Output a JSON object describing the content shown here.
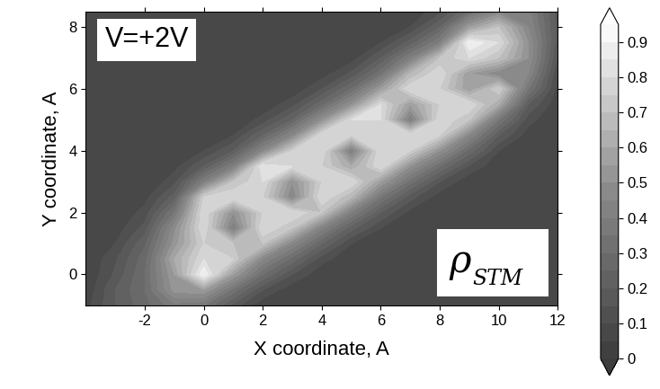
{
  "chart_data": {
    "type": "contour",
    "xlabel": "X coordinate, A",
    "ylabel": "Y coordinate, A",
    "annotation": "V=+2V",
    "label_symbol": "ρ",
    "label_subscript": "STM",
    "xlim": [
      -4,
      12
    ],
    "xticks": [
      -2,
      0,
      2,
      4,
      6,
      8,
      10,
      12
    ],
    "ylim": [
      -1,
      8.5
    ],
    "yticks": [
      0,
      2,
      4,
      6,
      8
    ],
    "colorbar_lim": [
      0,
      0.95
    ],
    "colorbar_ticks": [
      0,
      0.1,
      0.2,
      0.3,
      0.4,
      0.5,
      0.6,
      0.7,
      0.8,
      0.9
    ],
    "x": [
      -4,
      -3,
      -2,
      -1,
      0,
      1,
      2,
      3,
      4,
      5,
      6,
      7,
      8,
      9,
      10,
      11,
      12
    ],
    "y": [
      -1.0,
      -0.5,
      0.0,
      0.5,
      1.0,
      1.5,
      2.0,
      2.5,
      3.0,
      3.5,
      4.0,
      4.5,
      5.0,
      5.5,
      6.0,
      6.5,
      7.0,
      7.5,
      8.0,
      8.5
    ],
    "cells": [
      [
        0.08,
        0.2,
        0.28,
        0.38,
        0.35,
        0.18,
        0.06,
        0.05,
        0.05,
        0.05,
        0.05,
        0.05,
        0.05,
        0.05,
        0.05,
        0.05,
        0.05
      ],
      [
        0.06,
        0.2,
        0.3,
        0.52,
        0.55,
        0.33,
        0.15,
        0.06,
        0.05,
        0.05,
        0.05,
        0.05,
        0.05,
        0.05,
        0.05,
        0.05,
        0.05
      ],
      [
        0.05,
        0.16,
        0.3,
        0.55,
        0.9,
        0.55,
        0.3,
        0.15,
        0.06,
        0.05,
        0.05,
        0.05,
        0.05,
        0.05,
        0.05,
        0.05,
        0.05
      ],
      [
        0.05,
        0.14,
        0.28,
        0.6,
        0.8,
        0.75,
        0.45,
        0.28,
        0.12,
        0.06,
        0.05,
        0.05,
        0.05,
        0.05,
        0.05,
        0.05,
        0.05
      ],
      [
        0.05,
        0.1,
        0.24,
        0.52,
        0.75,
        0.7,
        0.7,
        0.45,
        0.25,
        0.1,
        0.06,
        0.05,
        0.05,
        0.05,
        0.05,
        0.05,
        0.05
      ],
      [
        0.05,
        0.07,
        0.17,
        0.48,
        0.8,
        0.4,
        0.8,
        0.7,
        0.42,
        0.22,
        0.1,
        0.05,
        0.05,
        0.05,
        0.05,
        0.05,
        0.05
      ],
      [
        0.05,
        0.05,
        0.12,
        0.35,
        0.8,
        0.5,
        0.75,
        0.8,
        0.7,
        0.4,
        0.2,
        0.08,
        0.05,
        0.05,
        0.05,
        0.05,
        0.05
      ],
      [
        0.05,
        0.05,
        0.08,
        0.22,
        0.75,
        0.8,
        0.75,
        0.45,
        0.8,
        0.65,
        0.35,
        0.17,
        0.07,
        0.05,
        0.05,
        0.05,
        0.05
      ],
      [
        0.05,
        0.05,
        0.05,
        0.13,
        0.4,
        0.7,
        0.8,
        0.5,
        0.75,
        0.8,
        0.55,
        0.32,
        0.15,
        0.06,
        0.05,
        0.05,
        0.05
      ],
      [
        0.05,
        0.05,
        0.05,
        0.08,
        0.2,
        0.4,
        0.85,
        0.8,
        0.75,
        0.6,
        0.8,
        0.5,
        0.3,
        0.14,
        0.06,
        0.05,
        0.05
      ],
      [
        0.05,
        0.05,
        0.05,
        0.05,
        0.1,
        0.2,
        0.45,
        0.75,
        0.8,
        0.4,
        0.8,
        0.75,
        0.5,
        0.28,
        0.1,
        0.05,
        0.05
      ],
      [
        0.05,
        0.05,
        0.05,
        0.05,
        0.05,
        0.1,
        0.25,
        0.45,
        0.8,
        0.75,
        0.75,
        0.8,
        0.75,
        0.45,
        0.2,
        0.07,
        0.05
      ],
      [
        0.05,
        0.05,
        0.05,
        0.05,
        0.05,
        0.05,
        0.12,
        0.25,
        0.5,
        0.8,
        0.8,
        0.4,
        0.8,
        0.7,
        0.35,
        0.12,
        0.05
      ],
      [
        0.05,
        0.05,
        0.05,
        0.05,
        0.05,
        0.05,
        0.06,
        0.13,
        0.28,
        0.5,
        0.8,
        0.55,
        0.75,
        0.8,
        0.6,
        0.2,
        0.06
      ],
      [
        0.05,
        0.05,
        0.05,
        0.05,
        0.05,
        0.05,
        0.05,
        0.06,
        0.15,
        0.3,
        0.55,
        0.8,
        0.75,
        0.55,
        0.75,
        0.35,
        0.08
      ],
      [
        0.05,
        0.05,
        0.05,
        0.05,
        0.05,
        0.05,
        0.05,
        0.05,
        0.07,
        0.16,
        0.33,
        0.65,
        0.8,
        0.55,
        0.45,
        0.45,
        0.1
      ],
      [
        0.05,
        0.05,
        0.05,
        0.05,
        0.05,
        0.05,
        0.05,
        0.05,
        0.05,
        0.07,
        0.2,
        0.4,
        0.7,
        0.8,
        0.7,
        0.5,
        0.14
      ],
      [
        0.05,
        0.05,
        0.05,
        0.05,
        0.05,
        0.05,
        0.05,
        0.05,
        0.05,
        0.05,
        0.1,
        0.22,
        0.4,
        0.9,
        0.8,
        0.5,
        0.17
      ],
      [
        0.05,
        0.05,
        0.05,
        0.05,
        0.05,
        0.05,
        0.05,
        0.05,
        0.05,
        0.05,
        0.05,
        0.1,
        0.25,
        0.55,
        0.7,
        0.45,
        0.18
      ],
      [
        0.05,
        0.05,
        0.05,
        0.05,
        0.05,
        0.05,
        0.05,
        0.05,
        0.05,
        0.05,
        0.05,
        0.06,
        0.13,
        0.3,
        0.45,
        0.42,
        0.17
      ]
    ]
  }
}
